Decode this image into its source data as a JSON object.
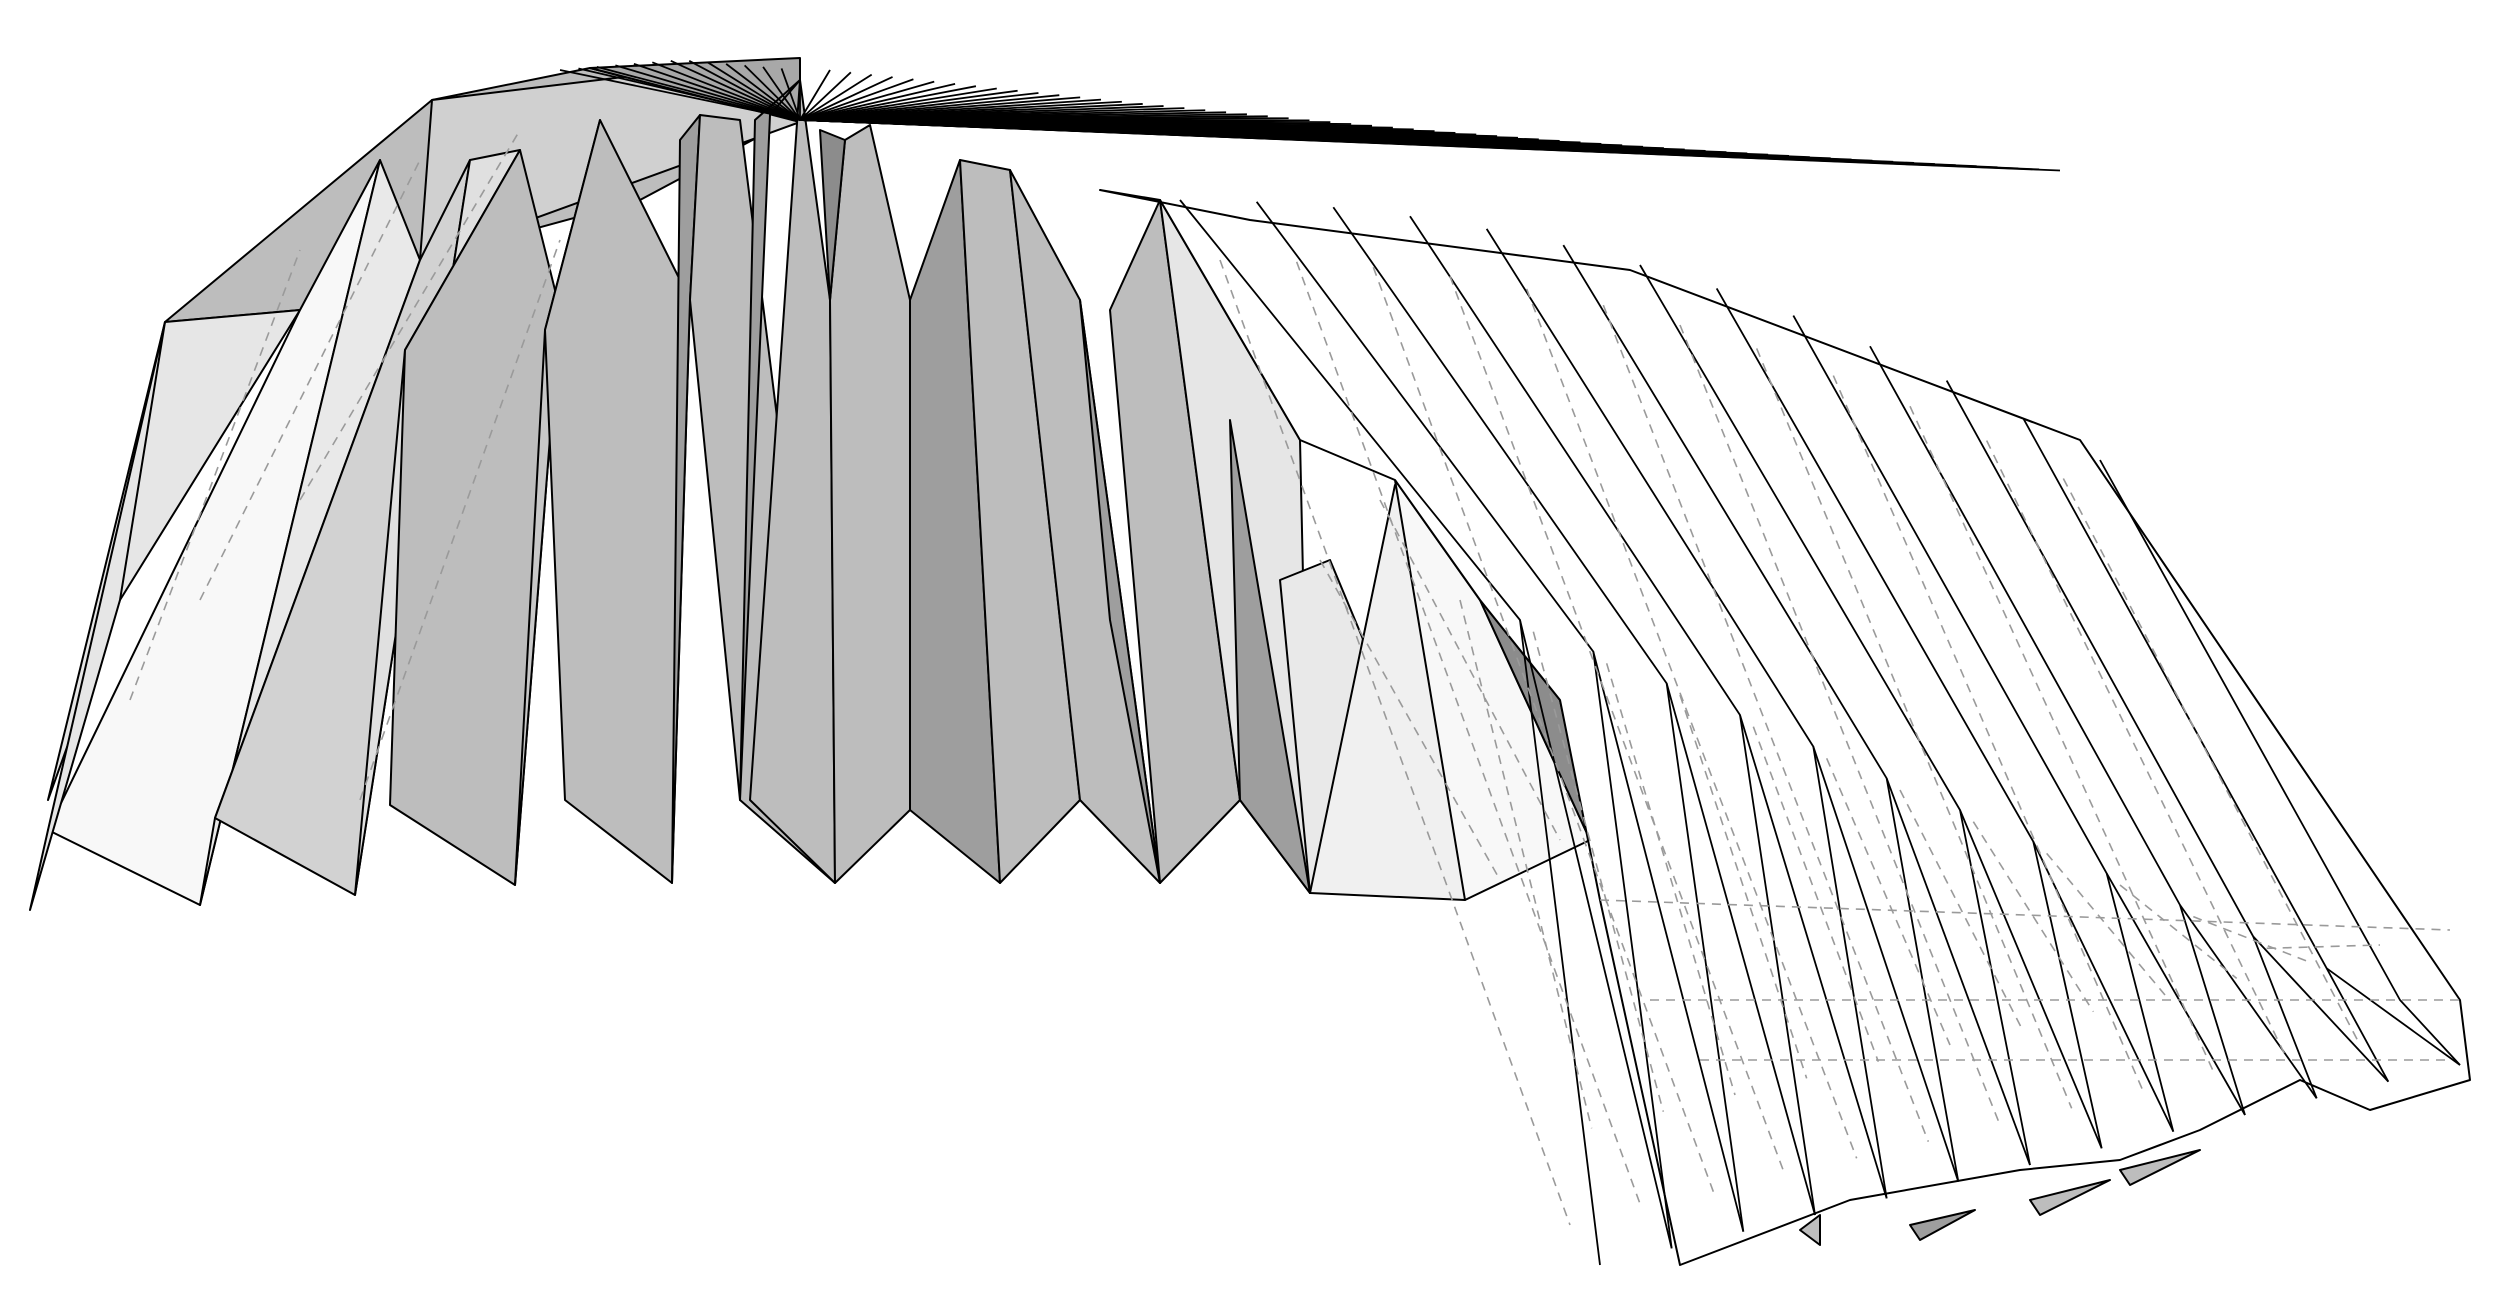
{
  "viewer": {
    "background": "#ffffff",
    "line_color": "#000000",
    "hidden_line_color": "#9a9a9a",
    "shading": {
      "darkest": "#8c8c8c",
      "dark": "#9e9e9e",
      "mid": "#bdbdbd",
      "light": "#e6e6e6",
      "lightest": "#f8f8f8",
      "white": "#ffffff"
    }
  },
  "model": {
    "icon": "folded-origami-vault",
    "front_pleat_count": 9,
    "side_pleat_count": 12
  }
}
